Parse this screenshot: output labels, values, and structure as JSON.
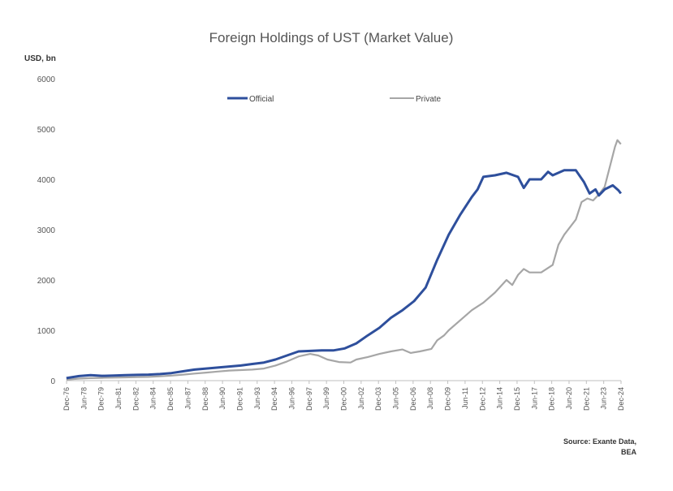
{
  "chart_data": {
    "type": "line",
    "title": "Foreign Holdings of UST (Market Value)",
    "ylabel": "USD, bn",
    "xlabel": "",
    "ylim": [
      0,
      6000
    ],
    "yticks": [
      0,
      1000,
      2000,
      3000,
      4000,
      5000,
      6000
    ],
    "x_start": "Dec-76",
    "x_end": "Dec-24",
    "xtick_labels": [
      "Dec-76",
      "Jun-78",
      "Dec-79",
      "Jun-81",
      "Dec-82",
      "Jun-84",
      "Dec-85",
      "Jun-87",
      "Dec-88",
      "Jun-90",
      "Dec-91",
      "Jun-93",
      "Dec-94",
      "Jun-96",
      "Dec-97",
      "Jun-99",
      "Dec-00",
      "Jun-02",
      "Dec-03",
      "Jun-05",
      "Dec-06",
      "Jun-08",
      "Dec-09",
      "Jun-11",
      "Dec-12",
      "Jun-14",
      "Dec-15",
      "Jun-17",
      "Dec-18",
      "Jun-20",
      "Dec-21",
      "Jun-23",
      "Dec-24"
    ],
    "legend_position": "top-center",
    "grid": false,
    "series": [
      {
        "name": "Official",
        "color": "#2e4f9c",
        "points": [
          [
            1976.9,
            50
          ],
          [
            1978.0,
            90
          ],
          [
            1979.0,
            110
          ],
          [
            1980.0,
            95
          ],
          [
            1981.0,
            100
          ],
          [
            1982.0,
            110
          ],
          [
            1983.0,
            115
          ],
          [
            1984.0,
            120
          ],
          [
            1985.0,
            130
          ],
          [
            1986.0,
            150
          ],
          [
            1987.0,
            185
          ],
          [
            1988.0,
            220
          ],
          [
            1989.0,
            240
          ],
          [
            1990.0,
            260
          ],
          [
            1991.0,
            280
          ],
          [
            1992.0,
            300
          ],
          [
            1993.0,
            330
          ],
          [
            1994.0,
            360
          ],
          [
            1995.0,
            420
          ],
          [
            1996.0,
            500
          ],
          [
            1997.0,
            580
          ],
          [
            1998.0,
            590
          ],
          [
            1999.0,
            600
          ],
          [
            2000.0,
            600
          ],
          [
            2001.0,
            640
          ],
          [
            2002.0,
            740
          ],
          [
            2003.0,
            900
          ],
          [
            2004.0,
            1050
          ],
          [
            2005.0,
            1250
          ],
          [
            2006.0,
            1400
          ],
          [
            2007.0,
            1580
          ],
          [
            2008.0,
            1850
          ],
          [
            2009.0,
            2400
          ],
          [
            2010.0,
            2900
          ],
          [
            2011.0,
            3300
          ],
          [
            2012.0,
            3650
          ],
          [
            2012.5,
            3800
          ],
          [
            2013.0,
            4050
          ],
          [
            2014.0,
            4080
          ],
          [
            2015.0,
            4130
          ],
          [
            2016.0,
            4050
          ],
          [
            2016.5,
            3830
          ],
          [
            2017.0,
            4000
          ],
          [
            2018.0,
            4000
          ],
          [
            2018.6,
            4150
          ],
          [
            2019.0,
            4080
          ],
          [
            2020.0,
            4180
          ],
          [
            2021.0,
            4180
          ],
          [
            2021.7,
            3950
          ],
          [
            2022.2,
            3720
          ],
          [
            2022.7,
            3800
          ],
          [
            2023.0,
            3680
          ],
          [
            2023.5,
            3800
          ],
          [
            2024.2,
            3880
          ],
          [
            2024.7,
            3780
          ],
          [
            2024.9,
            3720
          ]
        ]
      },
      {
        "name": "Private",
        "color": "#a6a6a6",
        "points": [
          [
            1976.9,
            20
          ],
          [
            1978.0,
            40
          ],
          [
            1979.0,
            50
          ],
          [
            1980.0,
            55
          ],
          [
            1981.0,
            60
          ],
          [
            1982.0,
            65
          ],
          [
            1983.0,
            70
          ],
          [
            1984.0,
            75
          ],
          [
            1985.0,
            85
          ],
          [
            1986.0,
            100
          ],
          [
            1987.0,
            120
          ],
          [
            1988.0,
            140
          ],
          [
            1989.0,
            160
          ],
          [
            1990.0,
            180
          ],
          [
            1991.0,
            200
          ],
          [
            1992.0,
            210
          ],
          [
            1993.0,
            220
          ],
          [
            1994.0,
            240
          ],
          [
            1995.0,
            300
          ],
          [
            1996.0,
            380
          ],
          [
            1997.0,
            480
          ],
          [
            1998.0,
            530
          ],
          [
            1998.7,
            500
          ],
          [
            1999.5,
            420
          ],
          [
            2000.5,
            370
          ],
          [
            2001.5,
            360
          ],
          [
            2002.0,
            420
          ],
          [
            2003.0,
            470
          ],
          [
            2004.0,
            530
          ],
          [
            2005.0,
            580
          ],
          [
            2006.0,
            620
          ],
          [
            2006.7,
            550
          ],
          [
            2007.5,
            580
          ],
          [
            2008.5,
            630
          ],
          [
            2009.0,
            800
          ],
          [
            2009.6,
            900
          ],
          [
            2010.0,
            1000
          ],
          [
            2011.0,
            1200
          ],
          [
            2012.0,
            1400
          ],
          [
            2013.0,
            1550
          ],
          [
            2014.0,
            1750
          ],
          [
            2015.0,
            2000
          ],
          [
            2015.5,
            1900
          ],
          [
            2016.0,
            2100
          ],
          [
            2016.5,
            2220
          ],
          [
            2017.0,
            2150
          ],
          [
            2018.0,
            2150
          ],
          [
            2019.0,
            2300
          ],
          [
            2019.5,
            2700
          ],
          [
            2020.0,
            2900
          ],
          [
            2021.0,
            3200
          ],
          [
            2021.5,
            3550
          ],
          [
            2022.0,
            3620
          ],
          [
            2022.5,
            3580
          ],
          [
            2023.0,
            3700
          ],
          [
            2023.5,
            3850
          ],
          [
            2024.0,
            4300
          ],
          [
            2024.4,
            4650
          ],
          [
            2024.6,
            4780
          ],
          [
            2024.9,
            4700
          ]
        ]
      }
    ],
    "source_note": [
      "Source: Exante Data,",
      "BEA"
    ]
  }
}
